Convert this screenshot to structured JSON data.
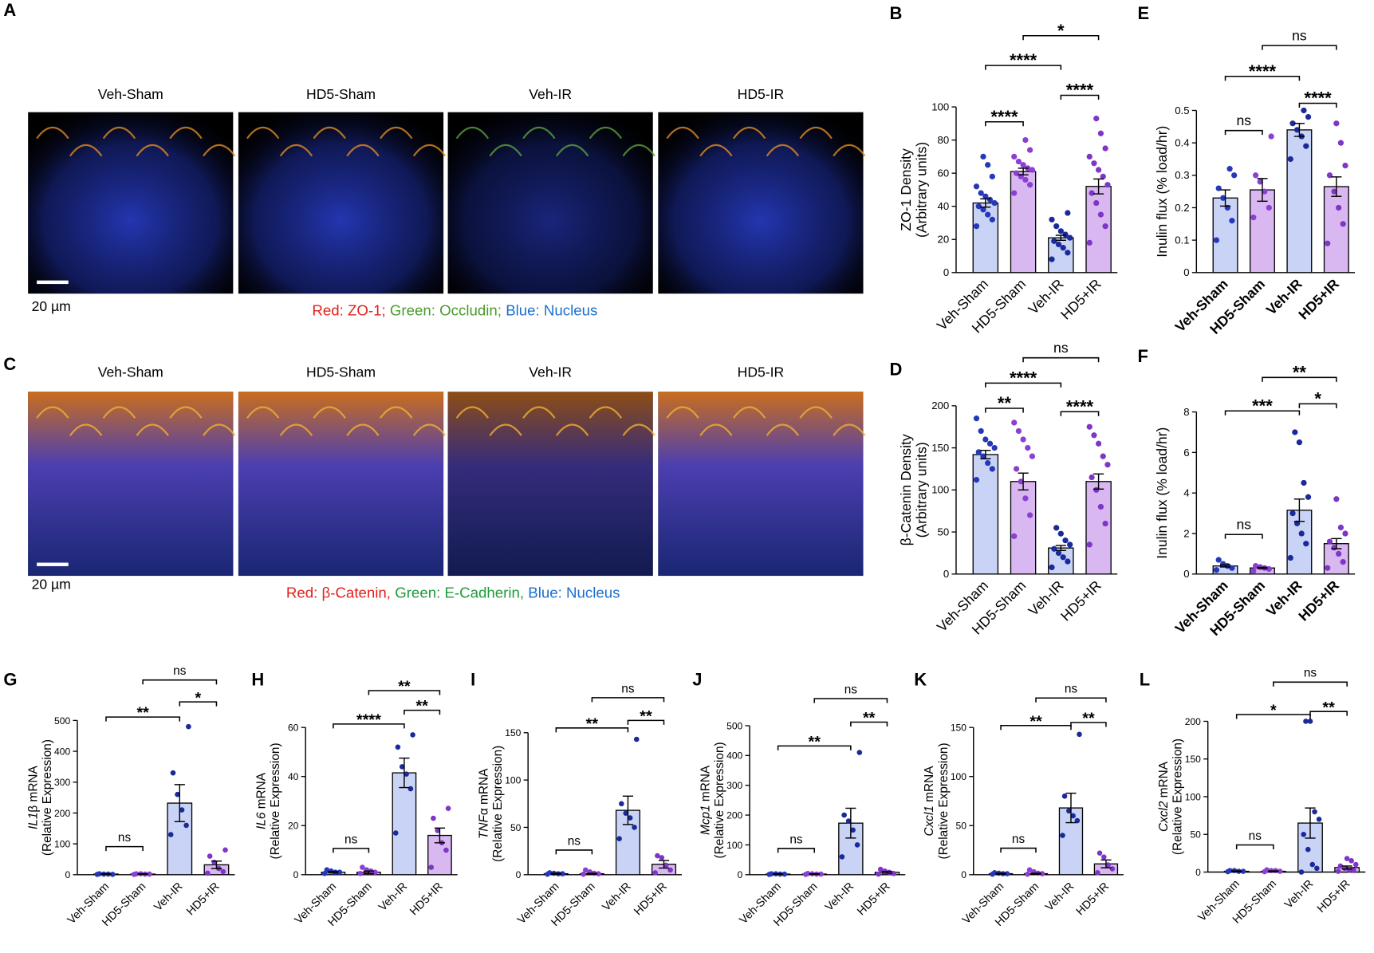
{
  "image_panels": [
    {
      "panel": "A",
      "titles": [
        "Veh-Sham",
        "HD5-Sham",
        "Veh-IR",
        "HD5-IR"
      ],
      "scale_bar": "20 µm",
      "caption": [
        {
          "text": "Red: ZO-1;",
          "color": "#e0201b"
        },
        {
          "text": " Green: Occludin;",
          "color": "#4a9a2a"
        },
        {
          "text": " Blue: Nucleus",
          "color": "#1a6fd0"
        }
      ]
    },
    {
      "panel": "C",
      "titles": [
        "Veh-Sham",
        "HD5-Sham",
        "Veh-IR",
        "HD5-IR"
      ],
      "scale_bar": "20 µm",
      "caption": [
        {
          "text": "Red: β-Catenin,",
          "color": "#e0201b"
        },
        {
          "text": " Green: E-Cadherin,",
          "color": "#1f9a3a"
        },
        {
          "text": " Blue: Nucleus",
          "color": "#1a6fd0"
        }
      ]
    }
  ],
  "chart_data": [
    {
      "type": "bar",
      "panel": "B",
      "ylabel": [
        "ZO-1 Density",
        "(Arbitrary units)"
      ],
      "categories": [
        "Veh-Sham",
        "HD5-Sham",
        "Veh-IR",
        "HD5+IR"
      ],
      "values": [
        42,
        61,
        21,
        52
      ],
      "errors": [
        2.5,
        2,
        1.5,
        4.5
      ],
      "points": [
        [
          28,
          32,
          35,
          38,
          40,
          42,
          44,
          46,
          48,
          52,
          58,
          65,
          70
        ],
        [
          48,
          53,
          56,
          58,
          60,
          62,
          63,
          65,
          67,
          70,
          74,
          80
        ],
        [
          8,
          12,
          15,
          17,
          19,
          21,
          23,
          25,
          28,
          32,
          36
        ],
        [
          18,
          28,
          35,
          42,
          48,
          53,
          58,
          62,
          66,
          70,
          75,
          84,
          93
        ]
      ],
      "ylim": [
        0,
        100
      ],
      "yticks": [
        0,
        20,
        40,
        60,
        80,
        100
      ],
      "brackets": [
        {
          "from": 0,
          "to": 1,
          "label": "****",
          "y": 91
        },
        {
          "from": 2,
          "to": 3,
          "label": "****",
          "y": 107
        },
        {
          "from": 0,
          "to": 2,
          "label": "****",
          "y": 125
        },
        {
          "from": 1,
          "to": 3,
          "label": "*",
          "y": 143
        }
      ],
      "bar_colors": [
        "#c9d3f6",
        "#d9b8f2",
        "#c9d3f6",
        "#d9b8f2"
      ],
      "dot_colors": [
        "#2438b8",
        "#8c3fd2",
        "#1a2a9a",
        "#7e36c6"
      ]
    },
    {
      "type": "bar",
      "panel": "E",
      "ylabel": [
        "Inulin flux (% load/hr)"
      ],
      "categories": [
        "Veh-Sham",
        "HD5-Sham",
        "Veh-IR",
        "HD5+IR"
      ],
      "values": [
        0.23,
        0.255,
        0.44,
        0.265
      ],
      "errors": [
        0.025,
        0.035,
        0.02,
        0.03
      ],
      "points": [
        [
          0.1,
          0.16,
          0.2,
          0.23,
          0.26,
          0.3,
          0.32
        ],
        [
          0.17,
          0.2,
          0.25,
          0.28,
          0.3,
          0.42
        ],
        [
          0.35,
          0.39,
          0.42,
          0.44,
          0.46,
          0.48,
          0.5
        ],
        [
          0.09,
          0.15,
          0.2,
          0.25,
          0.3,
          0.33,
          0.4,
          0.46
        ]
      ],
      "ylim": [
        0,
        0.5
      ],
      "yticks": [
        0,
        0.1,
        0.2,
        0.3,
        0.4,
        0.5
      ],
      "brackets": [
        {
          "from": 0,
          "to": 1,
          "label": "ns",
          "y": 0.438
        },
        {
          "from": 2,
          "to": 3,
          "label": "****",
          "y": 0.522
        },
        {
          "from": 0,
          "to": 2,
          "label": "****",
          "y": 0.605
        },
        {
          "from": 1,
          "to": 3,
          "label": "ns",
          "y": 0.7
        }
      ],
      "bar_colors": [
        "#c9d3f6",
        "#d9b8f2",
        "#c9d3f6",
        "#d9b8f2"
      ],
      "dot_colors": [
        "#2438b8",
        "#8c3fd2",
        "#1a2a9a",
        "#7e36c6"
      ]
    },
    {
      "type": "bar",
      "panel": "D",
      "ylabel": [
        "β-Catenin Density",
        "(Arbitrary units)"
      ],
      "categories": [
        "Veh-Sham",
        "HD5-Sham",
        "Veh-IR",
        "HD5+IR"
      ],
      "values": [
        142,
        110,
        31,
        110
      ],
      "errors": [
        5,
        10,
        3,
        9
      ],
      "points": [
        [
          112,
          125,
          132,
          140,
          145,
          150,
          155,
          160,
          170,
          185
        ],
        [
          45,
          70,
          90,
          110,
          125,
          140,
          150,
          160,
          170,
          180
        ],
        [
          8,
          15,
          20,
          25,
          30,
          35,
          40,
          48,
          55
        ],
        [
          35,
          60,
          80,
          100,
          115,
          130,
          140,
          155,
          165,
          175
        ]
      ],
      "ylim": [
        0,
        200
      ],
      "yticks": [
        0,
        50,
        100,
        150,
        200
      ],
      "brackets": [
        {
          "from": 0,
          "to": 1,
          "label": "**",
          "y": 197
        },
        {
          "from": 2,
          "to": 3,
          "label": "****",
          "y": 193
        },
        {
          "from": 0,
          "to": 2,
          "label": "****",
          "y": 227
        },
        {
          "from": 1,
          "to": 3,
          "label": "ns",
          "y": 257
        }
      ],
      "bar_colors": [
        "#c9d3f6",
        "#d9b8f2",
        "#c9d3f6",
        "#d9b8f2"
      ],
      "dot_colors": [
        "#2438b8",
        "#8c3fd2",
        "#1a2a9a",
        "#7e36c6"
      ]
    },
    {
      "type": "bar",
      "panel": "F",
      "ylabel": [
        "Inulin flux (% load/hr)"
      ],
      "categories": [
        "Veh-Sham",
        "HD5-Sham",
        "Veh-IR",
        "HD5+IR"
      ],
      "values": [
        0.4,
        0.3,
        3.15,
        1.5
      ],
      "errors": [
        0.05,
        0.03,
        0.55,
        0.25
      ],
      "points": [
        [
          0.2,
          0.3,
          0.4,
          0.5,
          0.7
        ],
        [
          0.15,
          0.25,
          0.3,
          0.35,
          0.4
        ],
        [
          0.8,
          1.5,
          2,
          2.5,
          3,
          3.8,
          4.5,
          6.5,
          7
        ],
        [
          0.3,
          0.6,
          1,
          1.3,
          1.6,
          2,
          2.3,
          3.7
        ]
      ],
      "ylim": [
        0,
        8
      ],
      "yticks": [
        0,
        2,
        4,
        6,
        8
      ],
      "brackets": [
        {
          "from": 0,
          "to": 1,
          "label": "ns",
          "y": 1.95
        },
        {
          "from": 2,
          "to": 3,
          "label": "*",
          "y": 8.4
        },
        {
          "from": 0,
          "to": 2,
          "label": "***",
          "y": 8.05
        },
        {
          "from": 1,
          "to": 3,
          "label": "**",
          "y": 9.7
        }
      ],
      "bar_colors": [
        "#c9d3f6",
        "#d9b8f2",
        "#c9d3f6",
        "#d9b8f2"
      ],
      "dot_colors": [
        "#2438b8",
        "#8c3fd2",
        "#1a2a9a",
        "#7e36c6"
      ]
    },
    {
      "type": "bar",
      "panel": "G",
      "ylabel_gene": "IL1",
      "ylabel": [
        "β mRNA",
        "(Relative Expression)"
      ],
      "categories": [
        "Veh-Sham",
        "HD5-Sham",
        "Veh-IR",
        "HD5+IR"
      ],
      "values": [
        2,
        2,
        232,
        32
      ],
      "errors": [
        1,
        1,
        60,
        12
      ],
      "points": [
        [
          1,
          1,
          2,
          2,
          3
        ],
        [
          1,
          2,
          2,
          3,
          3
        ],
        [
          130,
          160,
          210,
          260,
          330,
          480
        ],
        [
          5,
          10,
          20,
          40,
          60,
          80
        ]
      ],
      "ylim": [
        0,
        500
      ],
      "yticks": [
        0,
        100,
        200,
        300,
        400,
        500
      ],
      "brackets": [
        {
          "from": 0,
          "to": 1,
          "label": "ns",
          "y": 91
        },
        {
          "from": 2,
          "to": 3,
          "label": "*",
          "y": 560
        },
        {
          "from": 0,
          "to": 2,
          "label": "**",
          "y": 511
        },
        {
          "from": 1,
          "to": 3,
          "label": "ns",
          "y": 631
        }
      ],
      "bar_colors": [
        "#c9d3f6",
        "#d9b8f2",
        "#c9d3f6",
        "#d9b8f2"
      ],
      "dot_colors": [
        "#2438b8",
        "#8c3fd2",
        "#1a2a9a",
        "#7e36c6"
      ]
    },
    {
      "type": "bar",
      "panel": "H",
      "ylabel_gene": "IL6",
      "ylabel": [
        " mRNA",
        "(Relative Expression)"
      ],
      "categories": [
        "Veh-Sham",
        "HD5-Sham",
        "Veh-IR",
        "HD5+IR"
      ],
      "values": [
        1,
        1,
        41.5,
        16
      ],
      "errors": [
        0.3,
        0.5,
        6,
        3
      ],
      "points": [
        [
          0.5,
          1,
          1,
          1.5,
          2
        ],
        [
          0.5,
          1,
          1.5,
          2,
          3
        ],
        [
          17,
          35,
          41,
          44,
          52,
          57
        ],
        [
          3,
          10,
          13,
          18,
          23,
          27
        ]
      ],
      "ylim": [
        0,
        60
      ],
      "yticks": [
        0,
        20,
        40,
        60
      ],
      "brackets": [
        {
          "from": 0,
          "to": 1,
          "label": "ns",
          "y": 10.7
        },
        {
          "from": 2,
          "to": 3,
          "label": "**",
          "y": 67
        },
        {
          "from": 0,
          "to": 2,
          "label": "****",
          "y": 61.4
        },
        {
          "from": 1,
          "to": 3,
          "label": "**",
          "y": 75
        }
      ],
      "bar_colors": [
        "#c9d3f6",
        "#d9b8f2",
        "#c9d3f6",
        "#d9b8f2"
      ],
      "dot_colors": [
        "#2438b8",
        "#8c3fd2",
        "#1a2a9a",
        "#7e36c6"
      ]
    },
    {
      "type": "bar",
      "panel": "I",
      "ylabel_gene": "TNF",
      "ylabel": [
        "α mRNA",
        "(Relative Expression)"
      ],
      "categories": [
        "Veh-Sham",
        "HD5-Sham",
        "Veh-IR",
        "HD5+IR"
      ],
      "values": [
        1,
        1,
        68,
        11
      ],
      "errors": [
        0.5,
        0.5,
        15,
        4
      ],
      "points": [
        [
          0.5,
          1,
          1,
          1.5,
          2
        ],
        [
          0.5,
          1,
          1.5,
          3,
          5
        ],
        [
          38,
          50,
          60,
          65,
          75,
          143
        ],
        [
          2,
          5,
          10,
          18,
          20
        ]
      ],
      "ylim": [
        0,
        150
      ],
      "yticks": [
        0,
        50,
        100,
        150
      ],
      "brackets": [
        {
          "from": 0,
          "to": 1,
          "label": "ns",
          "y": 26
        },
        {
          "from": 2,
          "to": 3,
          "label": "**",
          "y": 163
        },
        {
          "from": 0,
          "to": 2,
          "label": "**",
          "y": 155
        },
        {
          "from": 1,
          "to": 3,
          "label": "ns",
          "y": 187
        }
      ],
      "bar_colors": [
        "#c9d3f6",
        "#d9b8f2",
        "#c9d3f6",
        "#d9b8f2"
      ],
      "dot_colors": [
        "#2438b8",
        "#8c3fd2",
        "#1a2a9a",
        "#7e36c6"
      ]
    },
    {
      "type": "bar",
      "panel": "J",
      "ylabel_gene": "Mcp1",
      "ylabel": [
        " mRNA",
        "(Relative Expression)"
      ],
      "categories": [
        "Veh-Sham",
        "HD5-Sham",
        "Veh-IR",
        "HD5+IR"
      ],
      "values": [
        2,
        2,
        173,
        8
      ],
      "errors": [
        1,
        1,
        50,
        3
      ],
      "points": [
        [
          1,
          2,
          2,
          3,
          3
        ],
        [
          1,
          2,
          2,
          3,
          4
        ],
        [
          60,
          100,
          150,
          180,
          200,
          410
        ],
        [
          2,
          4,
          8,
          12,
          18
        ]
      ],
      "ylim": [
        0,
        500
      ],
      "yticks": [
        0,
        100,
        200,
        300,
        400,
        500
      ],
      "brackets": [
        {
          "from": 0,
          "to": 1,
          "label": "ns",
          "y": 88
        },
        {
          "from": 2,
          "to": 3,
          "label": "**",
          "y": 512
        },
        {
          "from": 0,
          "to": 2,
          "label": "**",
          "y": 432
        },
        {
          "from": 1,
          "to": 3,
          "label": "ns",
          "y": 591
        }
      ],
      "bar_colors": [
        "#c9d3f6",
        "#d9b8f2",
        "#c9d3f6",
        "#d9b8f2"
      ],
      "dot_colors": [
        "#2438b8",
        "#8c3fd2",
        "#1a2a9a",
        "#7e36c6"
      ]
    },
    {
      "type": "bar",
      "panel": "K",
      "ylabel_gene": "Cxcl1",
      "ylabel": [
        " mRNA",
        "(Relative Expression)"
      ],
      "categories": [
        "Veh-Sham",
        "HD5-Sham",
        "Veh-IR",
        "HD5+IR"
      ],
      "values": [
        1,
        1,
        68,
        11
      ],
      "errors": [
        0.5,
        0.5,
        15,
        4
      ],
      "points": [
        [
          0.5,
          1,
          1,
          1.5,
          2
        ],
        [
          0.5,
          1,
          1.5,
          3,
          5
        ],
        [
          40,
          55,
          60,
          65,
          80,
          143
        ],
        [
          2,
          6,
          10,
          18,
          22
        ]
      ],
      "ylim": [
        0,
        150
      ],
      "yticks": [
        0,
        50,
        100,
        150
      ],
      "brackets": [
        {
          "from": 0,
          "to": 1,
          "label": "ns",
          "y": 27
        },
        {
          "from": 2,
          "to": 3,
          "label": "**",
          "y": 155
        },
        {
          "from": 0,
          "to": 2,
          "label": "**",
          "y": 152
        },
        {
          "from": 1,
          "to": 3,
          "label": "ns",
          "y": 180
        }
      ],
      "bar_colors": [
        "#c9d3f6",
        "#d9b8f2",
        "#c9d3f6",
        "#d9b8f2"
      ],
      "dot_colors": [
        "#2438b8",
        "#8c3fd2",
        "#1a2a9a",
        "#7e36c6"
      ]
    },
    {
      "type": "bar",
      "panel": "L",
      "ylabel_gene": "Cxcl2",
      "ylabel": [
        " mRNA",
        "(Relative Expression)"
      ],
      "categories": [
        "Veh-Sham",
        "HD5-Sham",
        "Veh-IR",
        "HD5+IR"
      ],
      "values": [
        1,
        1,
        65,
        6
      ],
      "errors": [
        0.5,
        0.5,
        20,
        2
      ],
      "points": [
        [
          0.5,
          1,
          1,
          2,
          2
        ],
        [
          0.5,
          1,
          2,
          2,
          3
        ],
        [
          0,
          5,
          10,
          30,
          50,
          70,
          80,
          200,
          200
        ],
        [
          1,
          2,
          3,
          5,
          8,
          10,
          15,
          18
        ]
      ],
      "ylim": [
        0,
        200
      ],
      "yticks": [
        0,
        50,
        100,
        150,
        200
      ],
      "brackets": [
        {
          "from": 0,
          "to": 1,
          "label": "ns",
          "y": 36
        },
        {
          "from": 2,
          "to": 3,
          "label": "**",
          "y": 213
        },
        {
          "from": 0,
          "to": 2,
          "label": "*",
          "y": 209
        },
        {
          "from": 1,
          "to": 3,
          "label": "ns",
          "y": 252
        }
      ],
      "bar_colors": [
        "#c9d3f6",
        "#d9b8f2",
        "#c9d3f6",
        "#d9b8f2"
      ],
      "dot_colors": [
        "#2438b8",
        "#8c3fd2",
        "#1a2a9a",
        "#7e36c6"
      ]
    }
  ]
}
